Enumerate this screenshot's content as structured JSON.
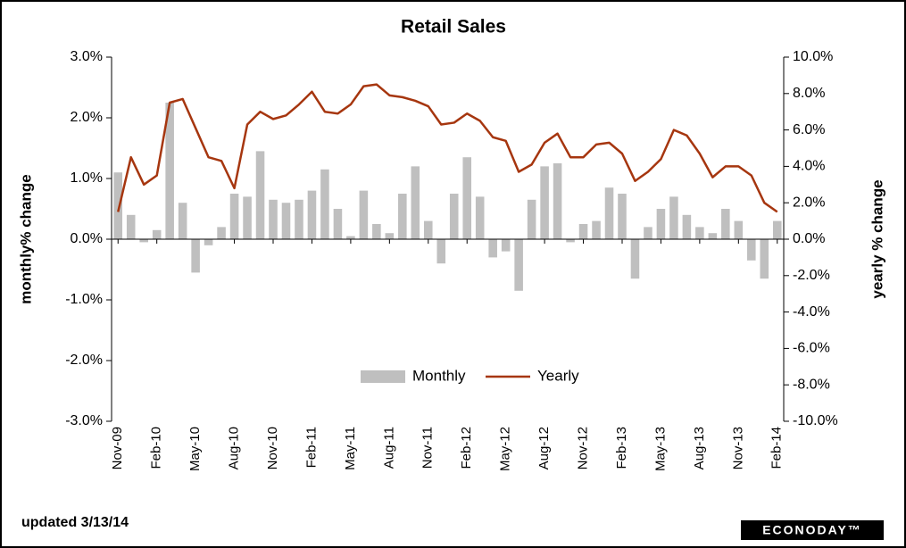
{
  "chart_data": {
    "type": "bar_line",
    "title": "Retail Sales",
    "ylabel": "monthly% change",
    "y2label": "yearly % change",
    "footer": "updated 3/13/14",
    "logo": "ECONODAY™",
    "categories": [
      "Nov-09",
      null,
      null,
      "Feb-10",
      null,
      null,
      "May-10",
      null,
      null,
      "Aug-10",
      null,
      null,
      "Nov-10",
      null,
      null,
      "Feb-11",
      null,
      null,
      "May-11",
      null,
      null,
      "Aug-11",
      null,
      null,
      "Nov-11",
      null,
      null,
      "Feb-12",
      null,
      null,
      "May-12",
      null,
      null,
      "Aug-12",
      null,
      null,
      "Nov-12",
      null,
      null,
      "Feb-13",
      null,
      null,
      "May-13",
      null,
      null,
      "Aug-13",
      null,
      null,
      "Nov-13",
      null,
      null,
      "Feb-14"
    ],
    "series": [
      {
        "name": "Monthly",
        "color": "#bfbfbf",
        "kind": "bar",
        "values": [
          1.1,
          0.4,
          -0.05,
          0.15,
          2.25,
          0.6,
          -0.55,
          -0.1,
          0.2,
          0.75,
          0.7,
          1.45,
          0.65,
          0.6,
          0.65,
          0.8,
          1.15,
          0.5,
          0.05,
          0.8,
          0.25,
          0.1,
          0.75,
          1.2,
          0.3,
          -0.4,
          0.75,
          1.35,
          0.7,
          -0.3,
          -0.2,
          -0.85,
          0.65,
          1.2,
          1.25,
          -0.05,
          0.25,
          0.3,
          0.85,
          0.75,
          -0.65,
          0.2,
          0.5,
          0.7,
          0.4,
          0.2,
          0.1,
          0.5,
          0.3,
          -0.35,
          -0.65,
          0.3
        ]
      },
      {
        "name": "Yearly",
        "color": "#a6360f",
        "kind": "line",
        "axis": "y2",
        "values": [
          1.5,
          4.5,
          3.0,
          3.5,
          7.5,
          7.7,
          6.1,
          4.5,
          4.3,
          2.8,
          6.3,
          7.0,
          6.6,
          6.8,
          7.4,
          8.1,
          7.0,
          6.9,
          7.4,
          8.4,
          8.5,
          7.9,
          7.8,
          7.6,
          7.3,
          6.3,
          6.4,
          6.9,
          6.5,
          5.6,
          5.4,
          3.7,
          4.1,
          5.3,
          5.8,
          4.5,
          4.5,
          5.2,
          5.3,
          4.7,
          3.2,
          3.7,
          4.4,
          6.0,
          5.7,
          4.7,
          3.4,
          4.0,
          4.0,
          3.5,
          2.0,
          1.5
        ]
      }
    ],
    "ylim": [
      -3,
      3
    ],
    "yticks": [
      {
        "value": -3,
        "label": "-3.0%"
      },
      {
        "value": -2,
        "label": "-2.0%"
      },
      {
        "value": -1,
        "label": "-1.0%"
      },
      {
        "value": 0,
        "label": "0.0%"
      },
      {
        "value": 1,
        "label": "1.0%"
      },
      {
        "value": 2,
        "label": "2.0%"
      },
      {
        "value": 3,
        "label": "3.0%"
      }
    ],
    "y2lim": [
      -10,
      10
    ],
    "y2ticks": [
      {
        "value": -10,
        "label": "-10.0%"
      },
      {
        "value": -8,
        "label": "-8.0%"
      },
      {
        "value": -6,
        "label": "-6.0%"
      },
      {
        "value": -4,
        "label": "-4.0%"
      },
      {
        "value": -2,
        "label": "-2.0%"
      },
      {
        "value": 0,
        "label": "0.0%"
      },
      {
        "value": 2,
        "label": "2.0%"
      },
      {
        "value": 4,
        "label": "4.0%"
      },
      {
        "value": 6,
        "label": "6.0%"
      },
      {
        "value": 8,
        "label": "8.0%"
      },
      {
        "value": 10,
        "label": "10.0%"
      }
    ],
    "legend": "bottom-center"
  }
}
